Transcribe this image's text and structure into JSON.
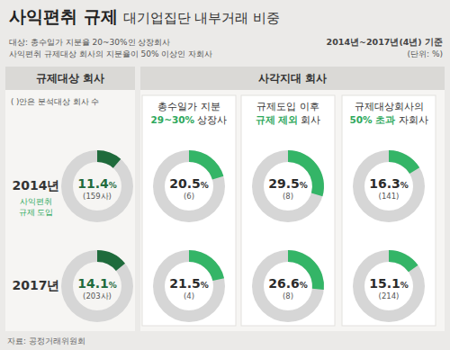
{
  "chart_data": {
    "type": "donut",
    "title": "사익편취 규제",
    "subtitle": "대기업집단 내부거래 비중",
    "notes": [
      "대상: 총수일가 지분율 20~30%인 상장회사",
      "사익편취 규제대상 회사의 지분율이 50% 이상인 자회사"
    ],
    "period": "2014년~2017년(4년) 기준",
    "unit": "(단위: %)",
    "groups": [
      {
        "label": "규제대상 회사",
        "note": "( )안은 분석대상 회사 수"
      },
      {
        "label": "사각지대 회사"
      }
    ],
    "categories": [
      null,
      [
        [
          "총수일가 지분"
        ],
        [
          "29~30%",
          " 상장사"
        ]
      ],
      [
        [
          "규제도입 이후"
        ],
        [
          "규제 제외",
          " 회사"
        ]
      ],
      [
        [
          "규제대상회사의"
        ],
        [
          "50% 초과",
          " 자회사"
        ]
      ]
    ],
    "series": [
      {
        "name": "2014년",
        "note": [
          "사익편취",
          "규제 도입"
        ],
        "values": [
          11.4,
          20.5,
          29.5,
          16.3
        ],
        "value_labels": [
          "11.4%",
          "20.5%",
          "29.5%",
          "16.3%"
        ],
        "counts": [
          159,
          6,
          8,
          141
        ],
        "count_labels": [
          "(159사)",
          "(6)",
          "(8)",
          "(141)"
        ]
      },
      {
        "name": "2017년",
        "values": [
          14.1,
          21.5,
          26.6,
          15.1
        ],
        "value_labels": [
          "14.1%",
          "21.5%",
          "26.6%",
          "15.1%"
        ],
        "counts": [
          203,
          4,
          8,
          214
        ],
        "count_labels": [
          "(203사)",
          "(4)",
          "(8)",
          "(214)"
        ]
      }
    ],
    "colors": [
      "#1f6b3c",
      "#34b567",
      "#34b567",
      "#34b567"
    ],
    "ylim": [
      0,
      100
    ],
    "data_labels": true,
    "source": "자료: 공정거래위원회"
  }
}
